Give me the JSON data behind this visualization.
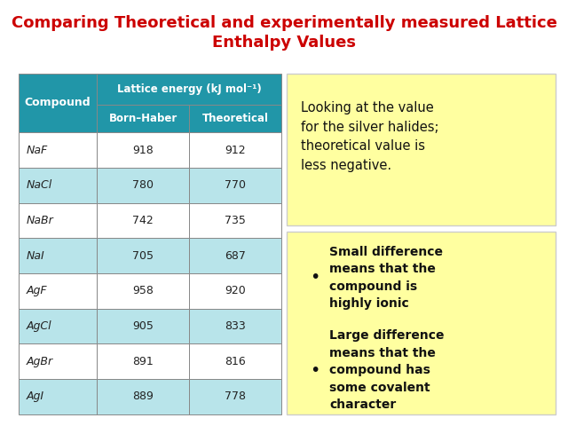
{
  "title_line1": "Comparing Theoretical and experimentally measured Lattice",
  "title_line2": "Enthalpy Values",
  "title_color": "#CC0000",
  "title_fontsize": 13,
  "background_color": "#ffffff",
  "table_header_bg": "#2196A8",
  "table_row_bg_light": "#B8E4EA",
  "table_row_bg_white": "#ffffff",
  "compounds": [
    "NaF",
    "NaCl",
    "NaBr",
    "NaI",
    "AgF",
    "AgCl",
    "AgBr",
    "AgI"
  ],
  "born_haber": [
    918,
    780,
    742,
    705,
    958,
    905,
    891,
    889
  ],
  "theoretical": [
    912,
    770,
    735,
    687,
    920,
    833,
    816,
    778
  ],
  "col_header": "Lattice energy (kJ mol⁻¹)",
  "col1_label": "Compound",
  "col2_label": "Born–Haber",
  "col3_label": "Theoretical",
  "note1": "Looking at the value\nfor the silver halides;\ntheoretical value is\nless negative.",
  "note2_bullet1": "Small difference\nmeans that the\ncompound is\nhighly ionic",
  "note2_bullet2": "Large difference\nmeans that the\ncompound has\nsome covalent\ncharacter",
  "note_bg": "#FFFFA0",
  "note_border": "#CCCCCC",
  "table_border_color": "#888888"
}
